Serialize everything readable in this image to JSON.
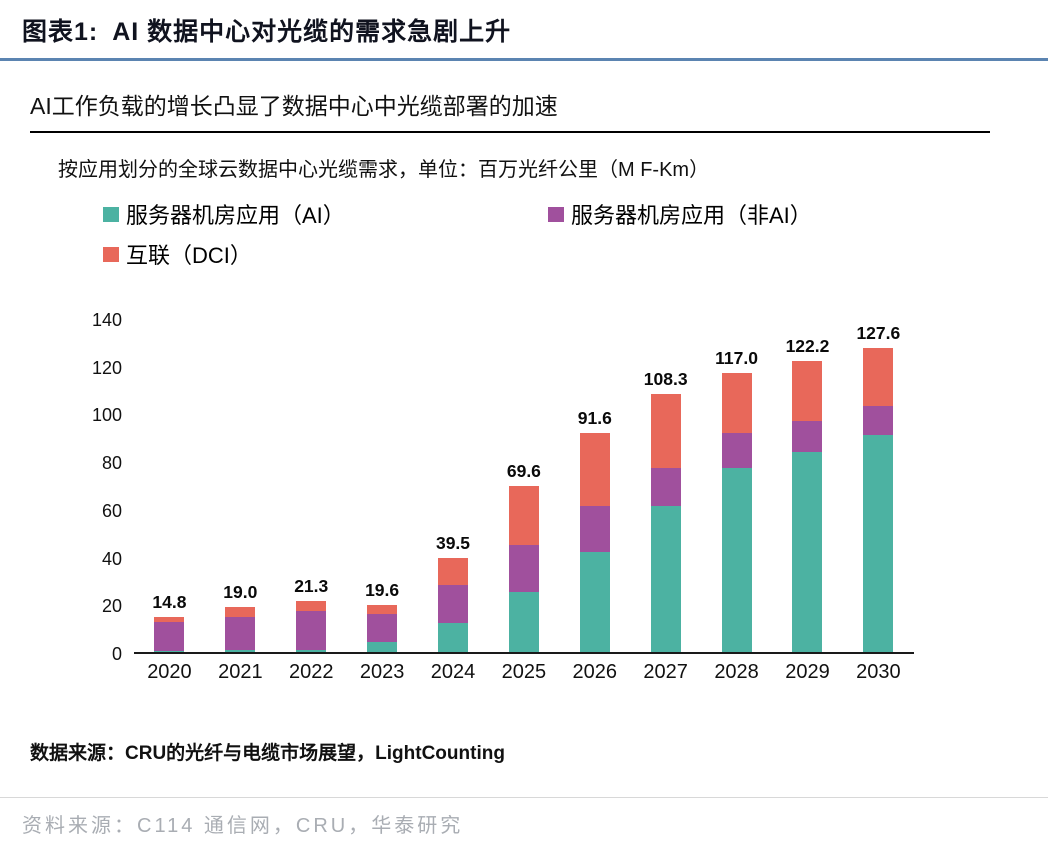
{
  "header": {
    "figure_label": "图表1:",
    "title": "AI 数据中心对光缆的需求急剧上升",
    "subtitle": "AI工作负载的增长凸显了数据中心中光缆部署的加速",
    "unit_note": "按应用划分的全球云数据中心光缆需求，单位：百万光纤公里（M F-Km）"
  },
  "chart_data": {
    "type": "bar",
    "stacked": true,
    "title": "按应用划分的全球云数据中心光缆需求",
    "unit": "百万光纤公里（M F-Km）",
    "categories": [
      "2020",
      "2021",
      "2022",
      "2023",
      "2024",
      "2025",
      "2026",
      "2027",
      "2028",
      "2029",
      "2030"
    ],
    "series": [
      {
        "name": "服务器机房应用（AI）",
        "color": "#4cb2a2",
        "values": [
          0.5,
          0.8,
          1.0,
          4.0,
          12.0,
          25.0,
          42.0,
          61.0,
          77.0,
          84.0,
          91.0
        ]
      },
      {
        "name": "服务器机房应用（非AI）",
        "color": "#a0509d",
        "values": [
          12.0,
          14.0,
          16.0,
          12.0,
          16.0,
          20.0,
          19.0,
          16.0,
          15.0,
          13.0,
          12.0
        ]
      },
      {
        "name": "互联（DCI）",
        "color": "#e8685a",
        "values": [
          2.3,
          4.2,
          4.3,
          3.6,
          11.5,
          24.6,
          30.6,
          31.3,
          25.0,
          25.2,
          24.6
        ]
      }
    ],
    "totals": [
      14.8,
      19.0,
      21.3,
      19.6,
      39.5,
      69.6,
      91.6,
      108.3,
      117.0,
      122.2,
      127.6
    ],
    "ylim": [
      0,
      140
    ],
    "ytick_step": 20,
    "grid": false,
    "legend_position": "top-left",
    "xlabel": "",
    "ylabel": ""
  },
  "footer": {
    "source": "数据来源：CRU的光纤与电缆市场展望，LightCounting",
    "bottom_source": "资料来源：C114 通信网，CRU，华泰研究"
  },
  "colors": {
    "title_rule": "#5b84b1",
    "accent_teal": "#4cb2a2",
    "accent_purple": "#a0509d",
    "accent_salmon": "#e8685a",
    "footer_gray": "#a9adb3"
  }
}
